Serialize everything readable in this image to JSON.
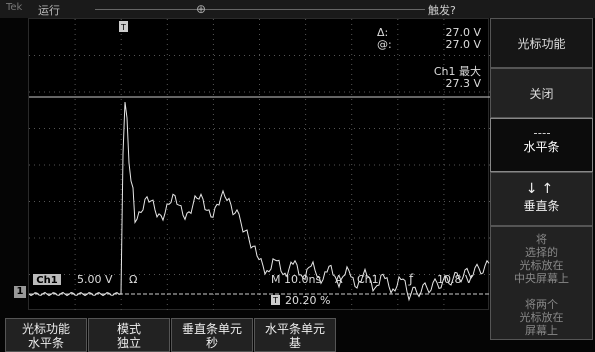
{
  "topbar": {
    "brand": "Tek",
    "run_state": "运行",
    "trigger_position": "⊕",
    "trigger_status": "触发?"
  },
  "cursor_readout": {
    "delta_label": "Δ:",
    "delta_value": "27.0 V",
    "at_label": "@:",
    "at_value": "27.0 V"
  },
  "measurement": {
    "label": "Ch1 最大",
    "value": "27.3 V"
  },
  "status": {
    "channel": "Ch1",
    "scale": "5.00 V",
    "coupling": "Ω",
    "timebase": "M 10.0ns",
    "trigger_label": "A",
    "trigger_source": "Ch1",
    "trigger_slope": "ƒ",
    "trigger_level": "10.8 V",
    "trigger_offset_icon": "T",
    "trigger_offset": "20.20 %"
  },
  "side_menu": {
    "title": "光标功能",
    "off": "关闭",
    "horizontal": "水平条",
    "vertical": "垂直条",
    "vertical_arrows": "↓↑",
    "hint_lines": [
      "将",
      "选择的",
      "光标放在",
      "中央屏幕上",
      "",
      "",
      "将两个",
      "光标放在",
      "屏幕上"
    ]
  },
  "bottom_menu": [
    {
      "line1": "光标功能",
      "line2": "水平条"
    },
    {
      "line1": "模式",
      "line2": "独立"
    },
    {
      "line1": "垂直条单元",
      "line2": "秒"
    },
    {
      "line1": "水平条单元",
      "line2": "基"
    }
  ],
  "channel_marker": "1",
  "colors": {
    "trace": "#e8e8e8",
    "grid": "#555555",
    "background": "#000000",
    "menu": "#222222"
  }
}
